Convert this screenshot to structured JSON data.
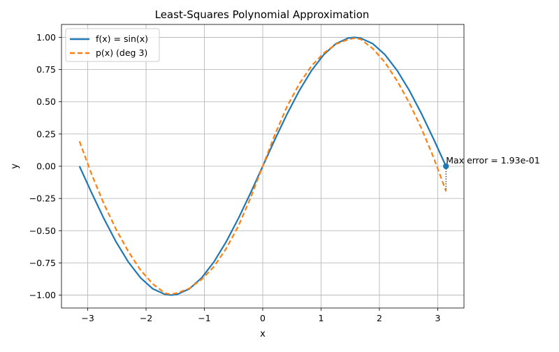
{
  "chart_data": {
    "type": "line",
    "title": "Least-Squares Polynomial Approximation",
    "xlabel": "x",
    "ylabel": "y",
    "xlim": [
      -3.45,
      3.45
    ],
    "ylim": [
      -1.1,
      1.1
    ],
    "xticks": [
      -3,
      -2,
      -1,
      0,
      1,
      2,
      3
    ],
    "xtick_labels": [
      "−3",
      "−2",
      "−1",
      "0",
      "1",
      "2",
      "3"
    ],
    "yticks": [
      -1.0,
      -0.75,
      -0.5,
      -0.25,
      0.0,
      0.25,
      0.5,
      0.75,
      1.0
    ],
    "ytick_labels": [
      "−1.00",
      "−0.75",
      "−0.50",
      "−0.25",
      "0.00",
      "0.25",
      "0.50",
      "0.75",
      "1.00"
    ],
    "grid": true,
    "legend_position": "top-left",
    "series": [
      {
        "name": "f(x) = sin(x)",
        "style": "solid",
        "color": "#1f77b4",
        "points": [
          [
            -3.1416,
            0.0
          ],
          [
            -2.9322,
            -0.2079
          ],
          [
            -2.7227,
            -0.4067
          ],
          [
            -2.5133,
            -0.5878
          ],
          [
            -2.3038,
            -0.7431
          ],
          [
            -2.0944,
            -0.866
          ],
          [
            -1.885,
            -0.9511
          ],
          [
            -1.6755,
            -0.9945
          ],
          [
            -1.5708,
            -1.0
          ],
          [
            -1.4661,
            -0.9945
          ],
          [
            -1.2566,
            -0.9511
          ],
          [
            -1.0472,
            -0.866
          ],
          [
            -0.8378,
            -0.7431
          ],
          [
            -0.6283,
            -0.5878
          ],
          [
            -0.4189,
            -0.4067
          ],
          [
            -0.2094,
            -0.2079
          ],
          [
            0.0,
            0.0
          ],
          [
            0.2094,
            0.2079
          ],
          [
            0.4189,
            0.4067
          ],
          [
            0.6283,
            0.5878
          ],
          [
            0.8378,
            0.7431
          ],
          [
            1.0472,
            0.866
          ],
          [
            1.2566,
            0.9511
          ],
          [
            1.4661,
            0.9945
          ],
          [
            1.5708,
            1.0
          ],
          [
            1.6755,
            0.9945
          ],
          [
            1.885,
            0.9511
          ],
          [
            2.0944,
            0.866
          ],
          [
            2.3038,
            0.7431
          ],
          [
            2.5133,
            0.5878
          ],
          [
            2.7227,
            0.4067
          ],
          [
            2.9322,
            0.2079
          ],
          [
            3.1416,
            0.0
          ]
        ]
      },
      {
        "name": "p(x) (deg 3)",
        "style": "dashed",
        "color": "#ff7f0e",
        "points": [
          [
            -3.1416,
            0.193
          ],
          [
            -2.9322,
            -0.0641
          ],
          [
            -2.7227,
            -0.2917
          ],
          [
            -2.5133,
            -0.4906
          ],
          [
            -2.3038,
            -0.662
          ],
          [
            -2.0944,
            -0.8064
          ],
          [
            -1.885,
            -0.9133
          ],
          [
            -1.6755,
            -0.9859
          ],
          [
            -1.5708,
            -0.9935
          ],
          [
            -1.4661,
            -0.9835
          ],
          [
            -1.2566,
            -0.9476
          ],
          [
            -1.0472,
            -0.878
          ],
          [
            -0.8378,
            -0.7798
          ],
          [
            -0.6283,
            -0.6402
          ],
          [
            -0.4189,
            -0.4658
          ],
          [
            -0.2094,
            -0.2463
          ],
          [
            0.0,
            0.0
          ],
          [
            0.2094,
            0.2463
          ],
          [
            0.4189,
            0.4658
          ],
          [
            0.6283,
            0.6402
          ],
          [
            0.8378,
            0.7798
          ],
          [
            1.0472,
            0.878
          ],
          [
            1.2566,
            0.9476
          ],
          [
            1.4661,
            0.9835
          ],
          [
            1.5708,
            0.9935
          ],
          [
            1.6755,
            0.9859
          ],
          [
            1.885,
            0.9133
          ],
          [
            2.0944,
            0.8064
          ],
          [
            2.3038,
            0.662
          ],
          [
            2.5133,
            0.4906
          ],
          [
            2.7227,
            0.2917
          ],
          [
            2.9322,
            0.0641
          ],
          [
            3.1416,
            -0.193
          ]
        ]
      }
    ],
    "annotation": {
      "text": "Max error = 1.93e-01",
      "x": 3.1416,
      "y": 0.0,
      "error_to_y": -0.193,
      "color": "#1f77b4"
    }
  }
}
